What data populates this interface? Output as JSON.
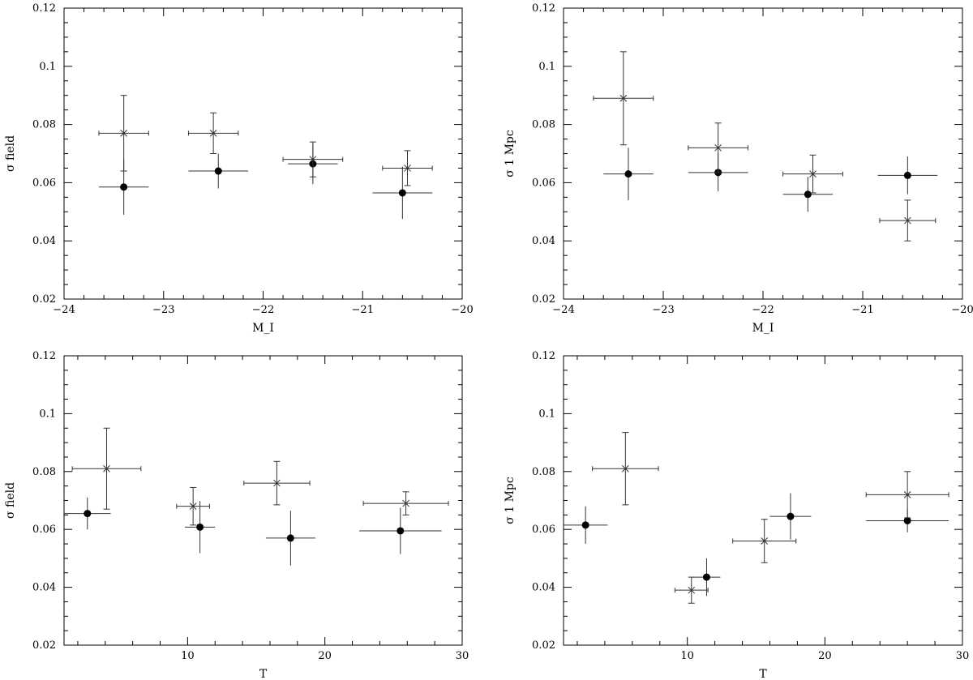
{
  "chart_data": [
    {
      "type": "scatter",
      "xlabel": "M_I",
      "ylabel": "σ field",
      "xlim": [
        -24,
        -20
      ],
      "ylim": [
        0.02,
        0.12
      ],
      "xticks": [
        -24,
        -23,
        -22,
        -21,
        -20
      ],
      "xtick_labels": [
        "−24",
        "−23",
        "−22",
        "−21",
        "−20"
      ],
      "yticks": [
        0.02,
        0.04,
        0.06,
        0.08,
        0.1,
        0.12
      ],
      "ytick_labels": [
        "0.02",
        "0.04",
        "0.06",
        "0.08",
        "0.1",
        "0.12"
      ],
      "series": [
        {
          "marker": "dot",
          "points": [
            {
              "x": -23.4,
              "y": 0.0585,
              "xerr": [
                0.25,
                0.25
              ],
              "yerr": [
                0.0095,
                0.0095
              ]
            },
            {
              "x": -22.45,
              "y": 0.064,
              "xerr": [
                0.3,
                0.3
              ],
              "yerr": [
                0.006,
                0.006
              ]
            },
            {
              "x": -21.5,
              "y": 0.0665,
              "xerr": [
                0.25,
                0.25
              ],
              "yerr": [
                0.007,
                0.007
              ]
            },
            {
              "x": -20.6,
              "y": 0.0565,
              "xerr": [
                0.3,
                0.3
              ],
              "yerr": [
                0.009,
                0.009
              ]
            }
          ]
        },
        {
          "marker": "cross",
          "points": [
            {
              "x": -23.4,
              "y": 0.077,
              "xerr": [
                0.25,
                0.25
              ],
              "yerr": [
                0.013,
                0.013
              ]
            },
            {
              "x": -22.5,
              "y": 0.077,
              "xerr": [
                0.25,
                0.25
              ],
              "yerr": [
                0.007,
                0.007
              ]
            },
            {
              "x": -21.5,
              "y": 0.068,
              "xerr": [
                0.3,
                0.3
              ],
              "yerr": [
                0.006,
                0.006
              ]
            },
            {
              "x": -20.55,
              "y": 0.065,
              "xerr": [
                0.25,
                0.25
              ],
              "yerr": [
                0.006,
                0.006
              ]
            }
          ]
        }
      ]
    },
    {
      "type": "scatter",
      "xlabel": "M_I",
      "ylabel": "σ 1 Mpc",
      "xlim": [
        -24,
        -20
      ],
      "ylim": [
        0.02,
        0.12
      ],
      "xticks": [
        -24,
        -23,
        -22,
        -21,
        -20
      ],
      "xtick_labels": [
        "−24",
        "−23",
        "−22",
        "−21",
        "−20"
      ],
      "yticks": [
        0.02,
        0.04,
        0.06,
        0.08,
        0.1,
        0.12
      ],
      "ytick_labels": [
        "0.02",
        "0.04",
        "0.06",
        "0.08",
        "0.1",
        "0.12"
      ],
      "series": [
        {
          "marker": "dot",
          "points": [
            {
              "x": -23.35,
              "y": 0.063,
              "xerr": [
                0.25,
                0.25
              ],
              "yerr": [
                0.009,
                0.009
              ]
            },
            {
              "x": -22.45,
              "y": 0.0635,
              "xerr": [
                0.3,
                0.3
              ],
              "yerr": [
                0.0065,
                0.0065
              ]
            },
            {
              "x": -21.55,
              "y": 0.056,
              "xerr": [
                0.25,
                0.25
              ],
              "yerr": [
                0.006,
                0.006
              ]
            },
            {
              "x": -20.55,
              "y": 0.0625,
              "xerr": [
                0.3,
                0.3
              ],
              "yerr": [
                0.0065,
                0.0065
              ]
            }
          ]
        },
        {
          "marker": "cross",
          "points": [
            {
              "x": -23.4,
              "y": 0.089,
              "xerr": [
                0.3,
                0.3
              ],
              "yerr": [
                0.016,
                0.016
              ]
            },
            {
              "x": -22.45,
              "y": 0.072,
              "xerr": [
                0.3,
                0.3
              ],
              "yerr": [
                0.0085,
                0.0085
              ]
            },
            {
              "x": -21.5,
              "y": 0.063,
              "xerr": [
                0.3,
                0.3
              ],
              "yerr": [
                0.0065,
                0.0065
              ]
            },
            {
              "x": -20.55,
              "y": 0.047,
              "xerr": [
                0.28,
                0.28
              ],
              "yerr": [
                0.007,
                0.007
              ]
            }
          ]
        }
      ]
    },
    {
      "type": "scatter",
      "xlabel": "T",
      "ylabel": "σ field",
      "xlim": [
        1,
        30
      ],
      "ylim": [
        0.02,
        0.12
      ],
      "xticks": [
        10,
        20,
        30
      ],
      "xtick_labels": [
        "10",
        "20",
        "30"
      ],
      "yticks": [
        0.02,
        0.04,
        0.06,
        0.08,
        0.1,
        0.12
      ],
      "ytick_labels": [
        "0.02",
        "0.04",
        "0.06",
        "0.08",
        "0.1",
        "0.12"
      ],
      "series": [
        {
          "marker": "dot",
          "points": [
            {
              "x": 2.7,
              "y": 0.0655,
              "xerr": [
                1.7,
                1.7
              ],
              "yerr": [
                0.0055,
                0.0055
              ]
            },
            {
              "x": 10.9,
              "y": 0.0608,
              "xerr": [
                1.1,
                1.1
              ],
              "yerr": [
                0.009,
                0.009
              ]
            },
            {
              "x": 17.5,
              "y": 0.057,
              "xerr": [
                1.8,
                1.8
              ],
              "yerr": [
                0.0095,
                0.0095
              ]
            },
            {
              "x": 25.5,
              "y": 0.0595,
              "xerr": [
                3.0,
                3.0
              ],
              "yerr": [
                0.008,
                0.008
              ]
            }
          ]
        },
        {
          "marker": "cross",
          "points": [
            {
              "x": 4.1,
              "y": 0.081,
              "xerr": [
                2.5,
                2.5
              ],
              "yerr": [
                0.014,
                0.014
              ]
            },
            {
              "x": 10.4,
              "y": 0.068,
              "xerr": [
                1.2,
                1.2
              ],
              "yerr": [
                0.0065,
                0.0065
              ]
            },
            {
              "x": 16.5,
              "y": 0.076,
              "xerr": [
                2.4,
                2.4
              ],
              "yerr": [
                0.0075,
                0.0075
              ]
            },
            {
              "x": 25.9,
              "y": 0.069,
              "xerr": [
                3.1,
                3.1
              ],
              "yerr": [
                0.004,
                0.004
              ]
            }
          ]
        }
      ]
    },
    {
      "type": "scatter",
      "xlabel": "T",
      "ylabel": "σ 1 Mpc",
      "xlim": [
        1,
        30
      ],
      "ylim": [
        0.02,
        0.12
      ],
      "xticks": [
        10,
        20,
        30
      ],
      "xtick_labels": [
        "10",
        "20",
        "30"
      ],
      "yticks": [
        0.02,
        0.04,
        0.06,
        0.08,
        0.1,
        0.12
      ],
      "ytick_labels": [
        "0.02",
        "0.04",
        "0.06",
        "0.08",
        "0.1",
        "0.12"
      ],
      "series": [
        {
          "marker": "dot",
          "points": [
            {
              "x": 2.6,
              "y": 0.0615,
              "xerr": [
                1.6,
                1.6
              ],
              "yerr": [
                0.0065,
                0.0065
              ]
            },
            {
              "x": 11.4,
              "y": 0.0435,
              "xerr": [
                1.0,
                1.0
              ],
              "yerr": [
                0.0065,
                0.0065
              ]
            },
            {
              "x": 17.5,
              "y": 0.0645,
              "xerr": [
                1.5,
                1.5
              ],
              "yerr": [
                0.008,
                0.008
              ]
            },
            {
              "x": 26.0,
              "y": 0.063,
              "xerr": [
                3.0,
                3.0
              ],
              "yerr": [
                0.004,
                0.004
              ]
            }
          ]
        },
        {
          "marker": "cross",
          "points": [
            {
              "x": 5.5,
              "y": 0.081,
              "xerr": [
                2.4,
                2.4
              ],
              "yerr": [
                0.0125,
                0.0125
              ]
            },
            {
              "x": 10.3,
              "y": 0.039,
              "xerr": [
                1.2,
                1.2
              ],
              "yerr": [
                0.0045,
                0.0045
              ]
            },
            {
              "x": 15.6,
              "y": 0.056,
              "xerr": [
                2.3,
                2.3
              ],
              "yerr": [
                0.0075,
                0.0075
              ]
            },
            {
              "x": 26.0,
              "y": 0.072,
              "xerr": [
                3.0,
                3.0
              ],
              "yerr": [
                0.008,
                0.008
              ]
            }
          ]
        }
      ]
    }
  ]
}
